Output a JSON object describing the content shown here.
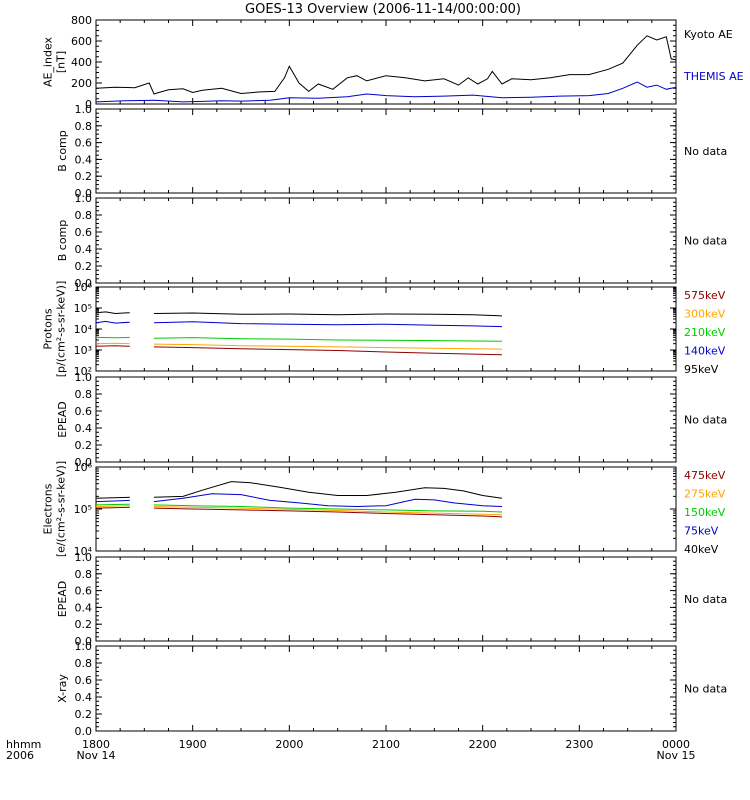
{
  "title": "GOES-13 Overview (2006-11-14/00:00:00)",
  "time_axis": {
    "row1_label": "hhmm",
    "row2_label": "2006",
    "ticks": [
      {
        "hour": 0,
        "hhmm": "1800",
        "date": "Nov 14"
      },
      {
        "hour": 1,
        "hhmm": "1900",
        "date": ""
      },
      {
        "hour": 2,
        "hhmm": "2000",
        "date": ""
      },
      {
        "hour": 3,
        "hhmm": "2100",
        "date": ""
      },
      {
        "hour": 4,
        "hhmm": "2200",
        "date": ""
      },
      {
        "hour": 5,
        "hhmm": "2300",
        "date": ""
      },
      {
        "hour": 6,
        "hhmm": "0000",
        "date": "Nov 15"
      }
    ],
    "range_hours": [
      0,
      6
    ]
  },
  "panels": [
    {
      "key": "ae",
      "ylabel_lines": [
        "AE_index",
        "[nT]"
      ],
      "scale": "linear",
      "ylim": [
        0,
        800
      ],
      "ticks": [
        "0",
        "200",
        "400",
        "600",
        "800"
      ],
      "tick_values": [
        0,
        200,
        400,
        600,
        800
      ],
      "legend": [
        {
          "text": "Kyoto AE",
          "color": "#000000"
        },
        {
          "text": "THEMIS AE",
          "color": "#0000cc"
        }
      ],
      "no_data": ""
    },
    {
      "key": "bcomp1",
      "ylabel_lines": [
        "B comp"
      ],
      "scale": "linear",
      "ylim": [
        0,
        1
      ],
      "ticks": [
        "0.0",
        "0.2",
        "0.4",
        "0.6",
        "0.8",
        "1.0"
      ],
      "tick_values": [
        0,
        0.2,
        0.4,
        0.6,
        0.8,
        1.0
      ],
      "legend": [],
      "no_data": "No data"
    },
    {
      "key": "bcomp2",
      "ylabel_lines": [
        "B comp"
      ],
      "scale": "linear",
      "ylim": [
        0,
        1
      ],
      "ticks": [
        "0.0",
        "0.2",
        "0.4",
        "0.6",
        "0.8",
        "1.0"
      ],
      "tick_values": [
        0,
        0.2,
        0.4,
        0.6,
        0.8,
        1.0
      ],
      "legend": [],
      "no_data": "No data"
    },
    {
      "key": "protons",
      "ylabel_lines": [
        "Protons",
        "[p/(cm²-s-sr-keV)]"
      ],
      "scale": "log",
      "ylim": [
        2,
        6
      ],
      "ticks": [
        "10²",
        "10³",
        "10⁴",
        "10⁵",
        "10⁶"
      ],
      "tick_values": [
        2,
        3,
        4,
        5,
        6
      ],
      "legend": [
        {
          "text": "575keV",
          "color": "#8b0000"
        },
        {
          "text": "300keV",
          "color": "#ffa500"
        },
        {
          "text": "210keV",
          "color": "#00cc00"
        },
        {
          "text": "140keV",
          "color": "#0000cc"
        },
        {
          "text": "95keV",
          "color": "#000000"
        }
      ],
      "no_data": ""
    },
    {
      "key": "epead1",
      "ylabel_lines": [
        "EPEAD"
      ],
      "scale": "linear",
      "ylim": [
        0,
        1
      ],
      "ticks": [
        "0.0",
        "0.2",
        "0.4",
        "0.6",
        "0.8",
        "1.0"
      ],
      "tick_values": [
        0,
        0.2,
        0.4,
        0.6,
        0.8,
        1.0
      ],
      "legend": [],
      "no_data": "No data"
    },
    {
      "key": "electrons",
      "ylabel_lines": [
        "Electrons",
        "[e/(cm²-s-sr-keV)]"
      ],
      "scale": "log",
      "ylim": [
        4,
        6
      ],
      "ticks": [
        "10⁴",
        "10⁵",
        "10⁶"
      ],
      "tick_values": [
        4,
        5,
        6
      ],
      "legend": [
        {
          "text": "475keV",
          "color": "#8b0000"
        },
        {
          "text": "275keV",
          "color": "#ffa500"
        },
        {
          "text": "150keV",
          "color": "#00cc00"
        },
        {
          "text": "75keV",
          "color": "#0000cc"
        },
        {
          "text": "40keV",
          "color": "#000000"
        }
      ],
      "no_data": ""
    },
    {
      "key": "epead2",
      "ylabel_lines": [
        "EPEAD"
      ],
      "scale": "linear",
      "ylim": [
        0,
        1
      ],
      "ticks": [
        "0.0",
        "0.2",
        "0.4",
        "0.6",
        "0.8",
        "1.0"
      ],
      "tick_values": [
        0,
        0.2,
        0.4,
        0.6,
        0.8,
        1.0
      ],
      "legend": [],
      "no_data": "No data"
    },
    {
      "key": "xray",
      "ylabel_lines": [
        "X-ray"
      ],
      "scale": "linear",
      "ylim": [
        0,
        1
      ],
      "ticks": [
        "0.0",
        "0.2",
        "0.4",
        "0.6",
        "0.8",
        "1.0"
      ],
      "tick_values": [
        0,
        0.2,
        0.4,
        0.6,
        0.8,
        1.0
      ],
      "legend": [],
      "no_data": "No data"
    }
  ],
  "chart_data": [
    {
      "type": "line",
      "panel": "ae",
      "ylim": [
        0,
        800
      ],
      "xlabel": "hhmm",
      "series": [
        {
          "name": "Kyoto AE",
          "color": "#000000",
          "x": [
            0,
            0.2,
            0.4,
            0.55,
            0.6,
            0.65,
            0.75,
            0.9,
            1.0,
            1.1,
            1.3,
            1.5,
            1.7,
            1.85,
            1.95,
            2.0,
            2.1,
            2.2,
            2.3,
            2.45,
            2.6,
            2.7,
            2.8,
            3.0,
            3.2,
            3.4,
            3.6,
            3.75,
            3.85,
            3.95,
            4.05,
            4.1,
            4.2,
            4.3,
            4.5,
            4.7,
            4.9,
            5.1,
            5.3,
            5.45,
            5.6,
            5.7,
            5.8,
            5.9,
            5.95,
            6.0
          ],
          "y": [
            150,
            160,
            155,
            200,
            95,
            110,
            135,
            145,
            110,
            130,
            150,
            100,
            115,
            120,
            250,
            360,
            200,
            120,
            190,
            140,
            250,
            270,
            220,
            270,
            250,
            220,
            240,
            180,
            250,
            190,
            240,
            310,
            190,
            240,
            230,
            250,
            280,
            280,
            330,
            390,
            560,
            650,
            610,
            640,
            430,
            420
          ]
        },
        {
          "name": "THEMIS AE",
          "color": "#0000cc",
          "x": [
            0,
            0.3,
            0.6,
            0.9,
            1.1,
            1.3,
            1.5,
            1.8,
            2.0,
            2.3,
            2.6,
            2.8,
            3.0,
            3.3,
            3.6,
            3.9,
            4.2,
            4.5,
            4.8,
            5.1,
            5.3,
            5.45,
            5.6,
            5.7,
            5.8,
            5.9,
            6.0
          ],
          "y": [
            20,
            30,
            35,
            20,
            25,
            30,
            28,
            35,
            60,
            55,
            70,
            95,
            80,
            70,
            75,
            85,
            60,
            65,
            75,
            80,
            100,
            150,
            210,
            160,
            180,
            140,
            160
          ]
        }
      ]
    },
    {
      "type": "line",
      "panel": "protons",
      "yscale": "log",
      "ylim": [
        100,
        1000000
      ],
      "xlabel": "hhmm",
      "series": [
        {
          "name": "95keV",
          "color": "#000000",
          "x": [
            0,
            0.1,
            0.2,
            0.35,
            null,
            0.6,
            1.0,
            1.5,
            2.0,
            2.5,
            3.0,
            3.5,
            3.9,
            4.2
          ],
          "y": [
            60000,
            65000,
            55000,
            60000,
            null,
            55000,
            58000,
            50000,
            52000,
            48000,
            52000,
            50000,
            48000,
            42000
          ]
        },
        {
          "name": "140keV",
          "color": "#0000cc",
          "x": [
            0,
            0.1,
            0.2,
            0.35,
            null,
            0.6,
            1.0,
            1.5,
            2.0,
            2.5,
            3.0,
            3.5,
            3.9,
            4.2
          ],
          "y": [
            20000,
            23000,
            19000,
            21000,
            null,
            20000,
            22000,
            18000,
            17000,
            16000,
            17000,
            15000,
            14000,
            13000
          ]
        },
        {
          "name": "210keV",
          "color": "#00cc00",
          "x": [
            0,
            0.2,
            0.35,
            null,
            0.6,
            1.0,
            1.5,
            2.0,
            2.5,
            3.0,
            3.5,
            4.2
          ],
          "y": [
            4000,
            3800,
            4000,
            null,
            3600,
            3900,
            3400,
            3300,
            3000,
            2900,
            2800,
            2600
          ]
        },
        {
          "name": "300keV",
          "color": "#ffa500",
          "x": [
            0,
            0.2,
            0.35,
            null,
            0.6,
            1.0,
            1.5,
            2.0,
            2.5,
            3.0,
            3.5,
            4.2
          ],
          "y": [
            2000,
            2100,
            2000,
            null,
            1900,
            1800,
            1600,
            1500,
            1400,
            1300,
            1200,
            1100
          ]
        },
        {
          "name": "575keV",
          "color": "#8b0000",
          "x": [
            0,
            0.2,
            0.35,
            null,
            0.6,
            1.0,
            1.5,
            2.0,
            2.5,
            3.0,
            3.5,
            4.2
          ],
          "y": [
            1500,
            1600,
            1500,
            null,
            1400,
            1300,
            1150,
            1050,
            950,
            800,
            700,
            600
          ]
        }
      ]
    },
    {
      "type": "line",
      "panel": "electrons",
      "yscale": "log",
      "ylim": [
        10000,
        1000000
      ],
      "xlabel": "hhmm",
      "series": [
        {
          "name": "40keV",
          "color": "#000000",
          "x": [
            0,
            0.35,
            null,
            0.6,
            0.9,
            1.1,
            1.4,
            1.6,
            1.9,
            2.2,
            2.5,
            2.8,
            3.1,
            3.4,
            3.6,
            3.8,
            4.0,
            4.2
          ],
          "y": [
            180000,
            190000,
            null,
            190000,
            200000,
            280000,
            450000,
            420000,
            330000,
            250000,
            210000,
            210000,
            250000,
            320000,
            310000,
            270000,
            210000,
            180000
          ]
        },
        {
          "name": "75keV",
          "color": "#0000cc",
          "x": [
            0,
            0.35,
            null,
            0.6,
            0.9,
            1.2,
            1.5,
            1.8,
            2.1,
            2.4,
            2.7,
            3.0,
            3.3,
            3.5,
            3.7,
            4.0,
            4.2
          ],
          "y": [
            150000,
            160000,
            null,
            150000,
            180000,
            230000,
            220000,
            160000,
            140000,
            120000,
            115000,
            120000,
            170000,
            165000,
            140000,
            120000,
            115000
          ]
        },
        {
          "name": "150keV",
          "color": "#00cc00",
          "x": [
            0,
            0.35,
            null,
            0.6,
            1.0,
            1.5,
            2.0,
            2.5,
            3.0,
            3.5,
            4.0,
            4.2
          ],
          "y": [
            125000,
            130000,
            null,
            125000,
            120000,
            115000,
            105000,
            100000,
            95000,
            90000,
            88000,
            85000
          ]
        },
        {
          "name": "275keV",
          "color": "#ffa500",
          "x": [
            0,
            0.35,
            null,
            0.6,
            1.0,
            1.5,
            2.0,
            2.5,
            3.0,
            3.5,
            4.0,
            4.2
          ],
          "y": [
            115000,
            120000,
            null,
            115000,
            110000,
            105000,
            98000,
            92000,
            85000,
            80000,
            75000,
            73000
          ]
        },
        {
          "name": "475keV",
          "color": "#8b0000",
          "x": [
            0,
            0.35,
            null,
            0.6,
            1.0,
            1.5,
            2.0,
            2.5,
            3.0,
            3.5,
            4.0,
            4.2
          ],
          "y": [
            105000,
            110000,
            null,
            105000,
            100000,
            95000,
            90000,
            85000,
            78000,
            73000,
            68000,
            65000
          ]
        }
      ]
    }
  ]
}
